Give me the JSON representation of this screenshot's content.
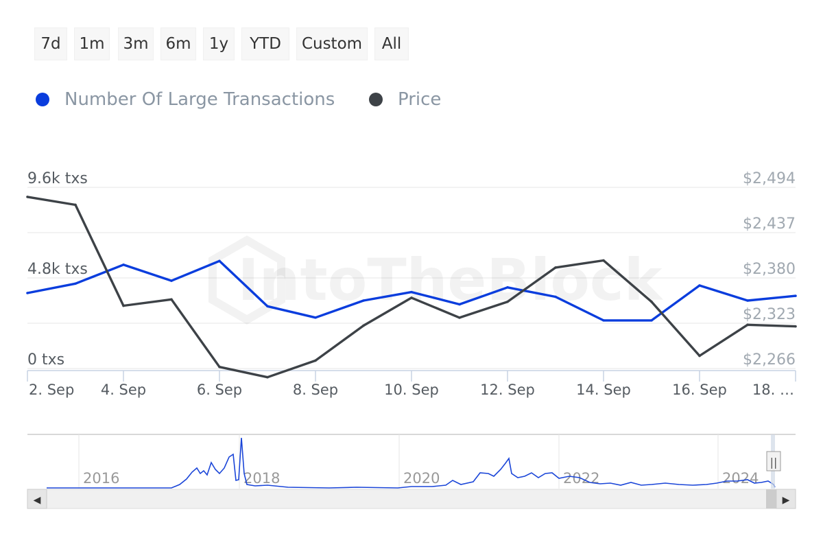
{
  "range_buttons": [
    "7d",
    "1m",
    "3m",
    "6m",
    "1y",
    "YTD",
    "Custom",
    "All"
  ],
  "legend": [
    {
      "label": "Number Of Large Transactions",
      "color": "#0a3ddd"
    },
    {
      "label": "Price",
      "color": "#3d4247"
    }
  ],
  "watermark": "IntoTheBlock",
  "chart_data": {
    "type": "line",
    "x": [
      "2024-09-02",
      "2024-09-03",
      "2024-09-04",
      "2024-09-05",
      "2024-09-06",
      "2024-09-07",
      "2024-09-08",
      "2024-09-09",
      "2024-09-10",
      "2024-09-11",
      "2024-09-12",
      "2024-09-13",
      "2024-09-14",
      "2024-09-15",
      "2024-09-16",
      "2024-09-17",
      "2024-09-18"
    ],
    "x_tick_labels": [
      "2. Sep",
      "4. Sep",
      "6. Sep",
      "8. Sep",
      "10. Sep",
      "12. Sep",
      "14. Sep",
      "16. Sep",
      "18. …"
    ],
    "series": [
      {
        "name": "Number Of Large Transactions",
        "axis": "left",
        "color": "#0a3ddd",
        "values": [
          4000,
          4500,
          5500,
          4650,
          5700,
          3300,
          2700,
          3600,
          4050,
          3400,
          4300,
          3800,
          2550,
          2550,
          4400,
          3600,
          3850
        ]
      },
      {
        "name": "Price",
        "axis": "right",
        "color": "#3d4247",
        "values": [
          2482,
          2472,
          2345,
          2353,
          2268,
          2255,
          2276,
          2320,
          2355,
          2330,
          2350,
          2393,
          2402,
          2350,
          2282,
          2321,
          2319
        ]
      }
    ],
    "left_axis": {
      "ticks": [
        "0 txs",
        "4.8k txs",
        "9.6k txs"
      ],
      "range": [
        0,
        9600
      ]
    },
    "right_axis": {
      "ticks": [
        "$2,266",
        "$2,323",
        "$2,380",
        "$2,437",
        "$2,494"
      ],
      "range": [
        2266,
        2494
      ]
    },
    "grid": true,
    "navigator": {
      "year_labels": [
        "2016",
        "2018",
        "2020",
        "2022",
        "2024"
      ],
      "scroll_left_arrow": "◀",
      "scroll_right_arrow": "▶",
      "handle_glyph": "||"
    }
  }
}
